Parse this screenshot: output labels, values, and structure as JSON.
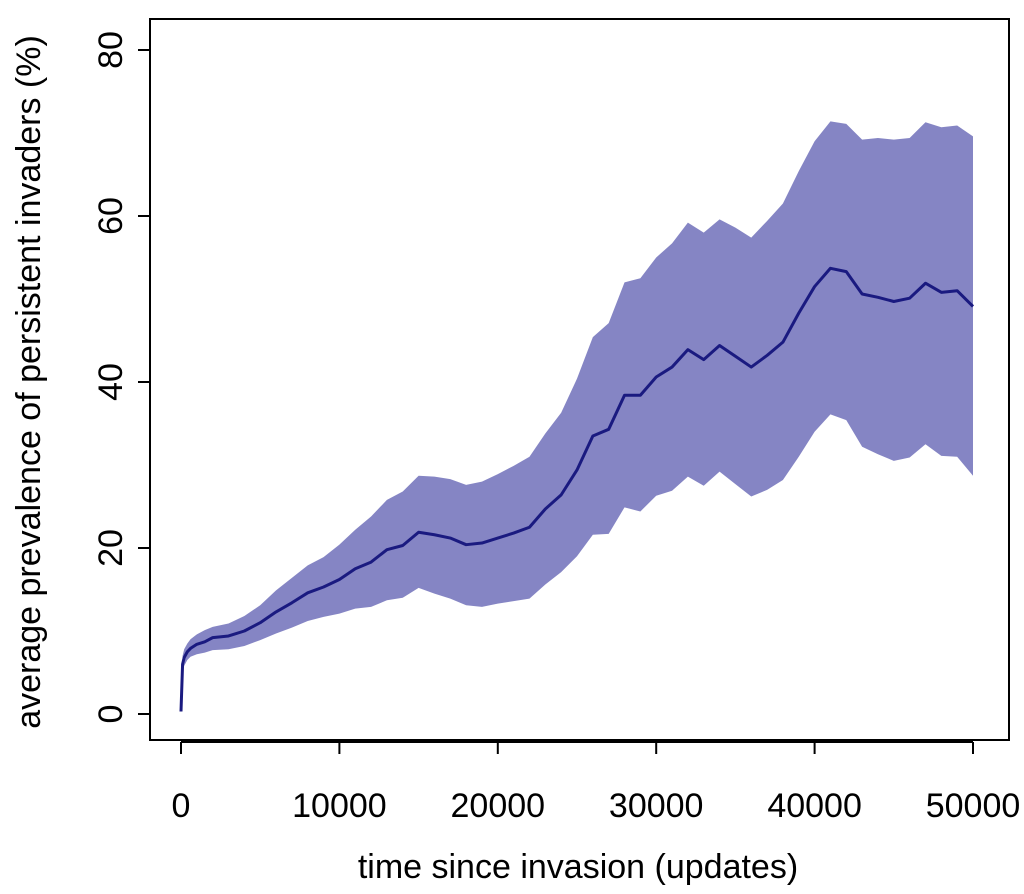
{
  "chart_data": {
    "type": "line",
    "title": "",
    "xlabel": "time since invasion (updates)",
    "ylabel": "average prevalence of persistent invaders (%)",
    "xlim": [
      0,
      50000
    ],
    "ylim": [
      0,
      80
    ],
    "xticks": [
      0,
      10000,
      20000,
      30000,
      40000,
      50000
    ],
    "xtick_labels": [
      "0",
      "10000",
      "20000",
      "30000",
      "40000",
      "50000"
    ],
    "yticks": [
      0,
      20,
      40,
      60,
      80
    ],
    "ytick_labels": [
      "0",
      "20",
      "40",
      "60",
      "80"
    ],
    "grid": false,
    "colors": {
      "line": "#1a1a80",
      "band": "#8585c4",
      "axis": "#000000"
    },
    "series": [
      {
        "name": "mean",
        "x": [
          0,
          100,
          200,
          400,
          600,
          1000,
          1500,
          2000,
          3000,
          4000,
          5000,
          6000,
          7000,
          8000,
          9000,
          10000,
          11000,
          12000,
          13000,
          14000,
          15000,
          16000,
          17000,
          18000,
          19000,
          20000,
          21000,
          22000,
          23000,
          24000,
          25000,
          26000,
          27000,
          28000,
          29000,
          30000,
          31000,
          32000,
          33000,
          34000,
          35000,
          36000,
          37000,
          38000,
          39000,
          40000,
          41000,
          42000,
          43000,
          44000,
          45000,
          46000,
          47000,
          48000,
          49000,
          50000
        ],
        "mean": [
          0.3,
          6.0,
          6.8,
          7.5,
          7.9,
          8.4,
          8.7,
          9.2,
          9.4,
          10.0,
          11.0,
          12.3,
          13.4,
          14.6,
          15.3,
          16.2,
          17.5,
          18.3,
          19.8,
          20.3,
          21.9,
          21.6,
          21.2,
          20.4,
          20.6,
          21.2,
          21.8,
          22.5,
          24.7,
          26.4,
          29.4,
          33.5,
          34.3,
          38.4,
          38.4,
          40.6,
          41.8,
          43.9,
          42.7,
          44.4,
          43.1,
          41.8,
          43.2,
          44.8,
          48.3,
          51.5,
          53.7,
          53.3,
          50.6,
          50.2,
          49.7,
          50.1,
          51.9,
          50.8,
          51.0,
          49.1
        ],
        "lower": [
          0.3,
          5.0,
          5.8,
          6.5,
          6.9,
          7.2,
          7.4,
          7.7,
          7.8,
          8.2,
          8.9,
          9.7,
          10.4,
          11.2,
          11.7,
          12.1,
          12.7,
          12.9,
          13.7,
          14.0,
          15.2,
          14.5,
          13.9,
          13.1,
          12.9,
          13.3,
          13.6,
          13.9,
          15.6,
          17.1,
          19.0,
          21.6,
          21.7,
          24.9,
          24.4,
          26.3,
          26.9,
          28.6,
          27.5,
          29.2,
          27.7,
          26.2,
          27.0,
          28.2,
          31.0,
          34.0,
          36.1,
          35.4,
          32.2,
          31.3,
          30.5,
          30.9,
          32.5,
          31.1,
          31.0,
          28.7
        ],
        "upper": [
          0.3,
          7.0,
          7.8,
          8.5,
          9.0,
          9.6,
          10.1,
          10.5,
          10.9,
          11.8,
          13.1,
          14.9,
          16.4,
          17.9,
          18.9,
          20.4,
          22.2,
          23.8,
          25.8,
          26.8,
          28.7,
          28.6,
          28.3,
          27.6,
          28.0,
          28.9,
          29.9,
          31.0,
          33.8,
          36.3,
          40.4,
          45.4,
          47.1,
          52.0,
          52.5,
          55.0,
          56.7,
          59.2,
          58.0,
          59.6,
          58.6,
          57.4,
          59.4,
          61.5,
          65.4,
          69.0,
          71.4,
          71.1,
          69.2,
          69.4,
          69.2,
          69.4,
          71.3,
          70.7,
          70.9,
          69.6
        ]
      }
    ]
  }
}
